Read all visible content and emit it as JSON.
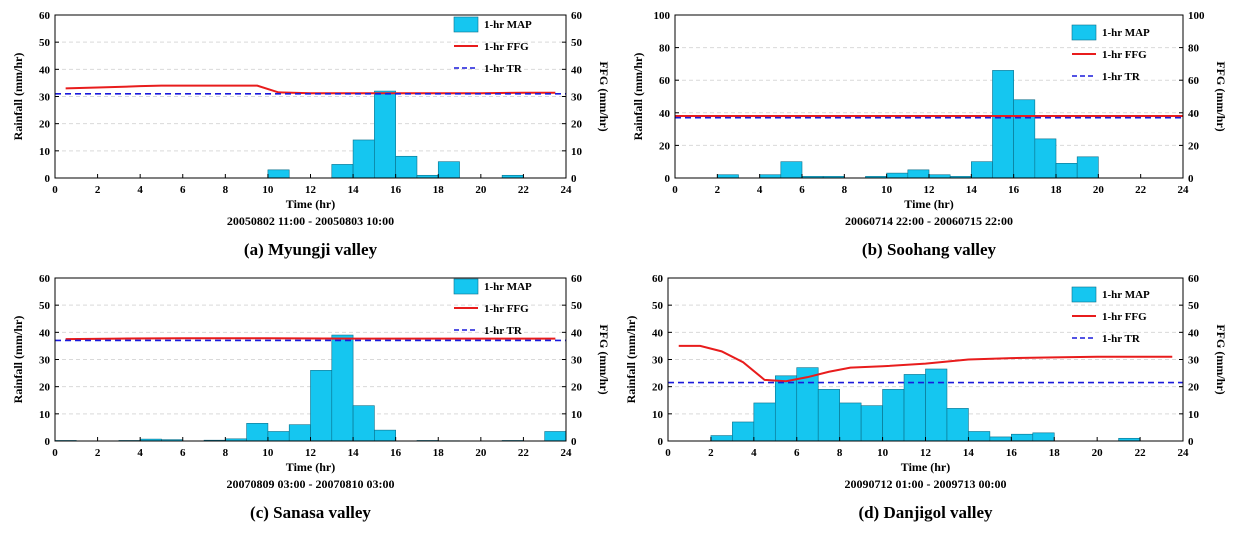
{
  "chart_data": [
    {
      "type": "bar",
      "caption": "(a) Myungji valley",
      "date_range": "20050802 11:00 -  20050803 10:00",
      "xlabel": "Time (hr)",
      "ylabel": "Rainfall (mm/hr)",
      "y2label": "FFG (mm/hr)",
      "xlim": [
        0,
        24
      ],
      "ylim": [
        0,
        60
      ],
      "y2lim": [
        0,
        60
      ],
      "xticks": [
        0,
        2,
        4,
        6,
        8,
        10,
        12,
        14,
        16,
        18,
        20,
        22,
        24
      ],
      "yticks": [
        0,
        10,
        20,
        30,
        40,
        50,
        60
      ],
      "grid": true,
      "legend_position": "top-right",
      "legend": [
        "1-hr MAP",
        "1-hr FFG",
        "1-hr TR"
      ],
      "bars": [
        {
          "x": 10.5,
          "value": 3
        },
        {
          "x": 13.5,
          "value": 5
        },
        {
          "x": 14.5,
          "value": 14
        },
        {
          "x": 15.5,
          "value": 32
        },
        {
          "x": 16.5,
          "value": 8
        },
        {
          "x": 17.5,
          "value": 1
        },
        {
          "x": 18.5,
          "value": 6
        },
        {
          "x": 21.5,
          "value": 1
        }
      ],
      "ffg": {
        "x": [
          0.5,
          2,
          4,
          5,
          6,
          8,
          9.5,
          10.5,
          12,
          14,
          16,
          18,
          20,
          22,
          23.5
        ],
        "y": [
          33,
          33.3,
          33.8,
          34,
          34,
          34,
          34,
          31.5,
          31.2,
          31.2,
          31.2,
          31.2,
          31.2,
          31.4,
          31.4
        ]
      },
      "tr": 31
    },
    {
      "type": "bar",
      "caption": "(b) Soohang valley",
      "date_range": "20060714 22:00 -  20060715 22:00",
      "xlabel": "Time (hr)",
      "ylabel": "Rainfall (mm/hr)",
      "y2label": "FFG (mm/hr)",
      "xlim": [
        0,
        24
      ],
      "ylim": [
        0,
        100
      ],
      "y2lim": [
        0,
        100
      ],
      "xticks": [
        0,
        2,
        4,
        6,
        8,
        10,
        12,
        14,
        16,
        18,
        20,
        22,
        24
      ],
      "yticks": [
        0,
        20,
        40,
        60,
        80,
        100
      ],
      "grid": true,
      "legend_position": "top-right",
      "legend": [
        "1-hr MAP",
        "1-hr FFG",
        "1-hr TR"
      ],
      "bars": [
        {
          "x": 2.5,
          "value": 2
        },
        {
          "x": 4.5,
          "value": 2
        },
        {
          "x": 5.5,
          "value": 10
        },
        {
          "x": 6.5,
          "value": 1
        },
        {
          "x": 7.5,
          "value": 1
        },
        {
          "x": 9.5,
          "value": 1
        },
        {
          "x": 10.5,
          "value": 3
        },
        {
          "x": 11.5,
          "value": 5
        },
        {
          "x": 12.5,
          "value": 2
        },
        {
          "x": 13.5,
          "value": 1
        },
        {
          "x": 14.5,
          "value": 10
        },
        {
          "x": 15.5,
          "value": 66
        },
        {
          "x": 16.5,
          "value": 48
        },
        {
          "x": 17.5,
          "value": 24
        },
        {
          "x": 18.5,
          "value": 9
        },
        {
          "x": 19.5,
          "value": 13
        }
      ],
      "ffg": {
        "x": [
          0,
          24
        ],
        "y": [
          38,
          38
        ]
      },
      "tr": 37
    },
    {
      "type": "bar",
      "caption": "(c) Sanasa valley",
      "date_range": "20070809 03:00 -  20070810 03:00",
      "xlabel": "Time (hr)",
      "ylabel": "Rainfall (mm/hr)",
      "y2label": "FFG (mm/hr)",
      "xlim": [
        0,
        24
      ],
      "ylim": [
        0,
        60
      ],
      "y2lim": [
        0,
        60
      ],
      "xticks": [
        0,
        2,
        4,
        6,
        8,
        10,
        12,
        14,
        16,
        18,
        20,
        22,
        24
      ],
      "yticks": [
        0,
        10,
        20,
        30,
        40,
        50,
        60
      ],
      "grid": true,
      "legend_position": "top-right",
      "legend": [
        "1-hr MAP",
        "1-hr FFG",
        "1-hr TR"
      ],
      "bars": [
        {
          "x": 0.5,
          "value": 0.2
        },
        {
          "x": 3.5,
          "value": 0.2
        },
        {
          "x": 4.5,
          "value": 0.7
        },
        {
          "x": 5.5,
          "value": 0.5
        },
        {
          "x": 7.5,
          "value": 0.3
        },
        {
          "x": 8.5,
          "value": 0.8
        },
        {
          "x": 9.5,
          "value": 6.5
        },
        {
          "x": 10.5,
          "value": 3.5
        },
        {
          "x": 11.5,
          "value": 6
        },
        {
          "x": 12.5,
          "value": 26
        },
        {
          "x": 13.5,
          "value": 39
        },
        {
          "x": 14.5,
          "value": 13
        },
        {
          "x": 15.5,
          "value": 4
        },
        {
          "x": 17.5,
          "value": 0.2
        },
        {
          "x": 18.5,
          "value": 0.1
        },
        {
          "x": 21.5,
          "value": 0.2
        },
        {
          "x": 23.5,
          "value": 3.5
        }
      ],
      "ffg": {
        "x": [
          0.5,
          3,
          6,
          10,
          14,
          18,
          22,
          23.5
        ],
        "y": [
          37.5,
          37.7,
          37.8,
          37.8,
          37.7,
          37.7,
          37.7,
          37.7
        ]
      },
      "tr": 37
    },
    {
      "type": "bar",
      "caption": "(d) Danjigol valley",
      "date_range": "20090712 01:00 -  2009713 00:00",
      "xlabel": "Time (hr)",
      "ylabel": "Rainfall (mm/hr)",
      "y2label": "FFG (mm/hr)",
      "xlim": [
        0,
        24
      ],
      "ylim": [
        0,
        60
      ],
      "y2lim": [
        0,
        60
      ],
      "xticks": [
        0,
        2,
        4,
        6,
        8,
        10,
        12,
        14,
        16,
        18,
        20,
        22,
        24
      ],
      "yticks": [
        0,
        10,
        20,
        30,
        40,
        50,
        60
      ],
      "grid": true,
      "legend_position": "top-right",
      "legend": [
        "1-hr MAP",
        "1-hr FFG",
        "1-hr TR"
      ],
      "bars": [
        {
          "x": 2.5,
          "value": 2
        },
        {
          "x": 3.5,
          "value": 7
        },
        {
          "x": 4.5,
          "value": 14
        },
        {
          "x": 5.5,
          "value": 24
        },
        {
          "x": 6.5,
          "value": 27
        },
        {
          "x": 7.5,
          "value": 19
        },
        {
          "x": 8.5,
          "value": 14
        },
        {
          "x": 9.5,
          "value": 13
        },
        {
          "x": 10.5,
          "value": 19
        },
        {
          "x": 11.5,
          "value": 24.5
        },
        {
          "x": 12.5,
          "value": 26.5
        },
        {
          "x": 13.5,
          "value": 12
        },
        {
          "x": 14.5,
          "value": 3.5
        },
        {
          "x": 15.5,
          "value": 1.5
        },
        {
          "x": 16.5,
          "value": 2.5
        },
        {
          "x": 17.5,
          "value": 3
        },
        {
          "x": 21.5,
          "value": 1
        }
      ],
      "ffg": {
        "x": [
          0.5,
          1.5,
          2.5,
          3.5,
          4.5,
          5.5,
          6.5,
          7.5,
          8.5,
          10,
          12,
          14,
          16,
          18,
          20,
          22,
          23.5
        ],
        "y": [
          35,
          35,
          33,
          29,
          22.5,
          22,
          23.5,
          25.5,
          27,
          27.5,
          28.5,
          30,
          30.5,
          30.8,
          31,
          31,
          31
        ]
      },
      "tr": 21.5
    }
  ],
  "colors": {
    "bar_fill": "#15c6f0",
    "bar_stroke": "#0a6f8a",
    "ffg_line": "#e81c1c",
    "tr_line": "#1a1adb",
    "grid": "#d9d9d9"
  }
}
